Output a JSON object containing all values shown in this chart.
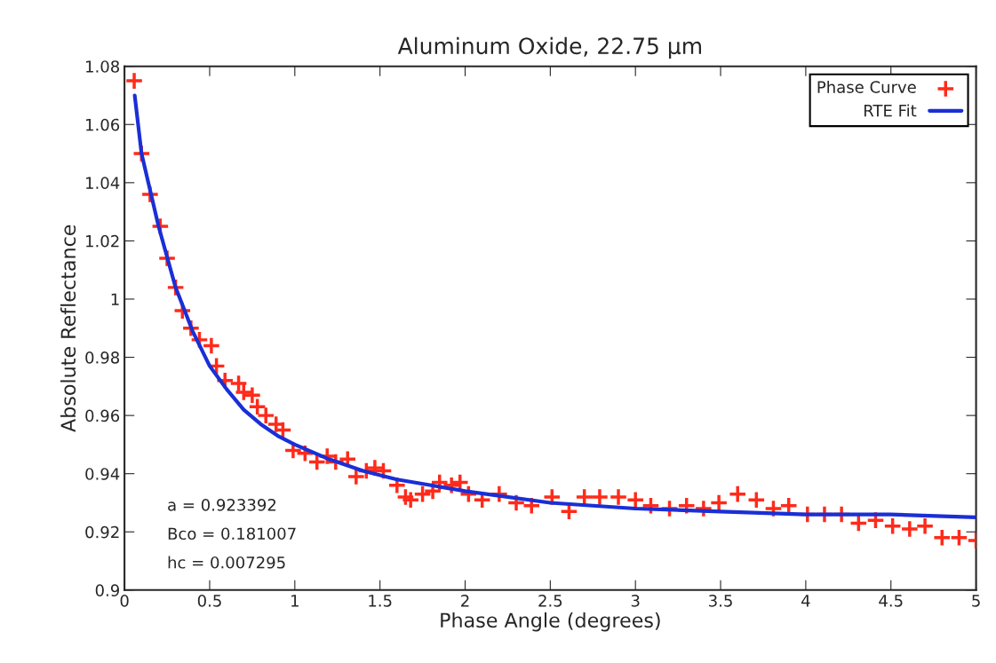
{
  "chart_data": {
    "type": "scatter",
    "title": "Aluminum Oxide, 22.75 μm",
    "xlabel": "Phase Angle (degrees)",
    "ylabel": "Absolute Reflectance",
    "xlim": [
      0,
      5
    ],
    "xticks": [
      0,
      0.5,
      1,
      1.5,
      2,
      2.5,
      3,
      3.5,
      4,
      4.5,
      5
    ],
    "ylim": [
      0.9,
      1.08
    ],
    "yticks": [
      0.9,
      0.92,
      0.94,
      0.96,
      0.98,
      1,
      1.02,
      1.04,
      1.06,
      1.08
    ],
    "grid": false,
    "legend": "top right",
    "series": [
      {
        "name": "Phase Curve",
        "marker": "cross",
        "color": "#ff2a1a",
        "x": [
          0.057,
          0.1,
          0.15,
          0.21,
          0.25,
          0.3,
          0.34,
          0.39,
          0.44,
          0.51,
          0.54,
          0.59,
          0.67,
          0.7,
          0.75,
          0.78,
          0.83,
          0.89,
          0.93,
          0.99,
          1.06,
          1.13,
          1.19,
          1.24,
          1.31,
          1.36,
          1.42,
          1.47,
          1.52,
          1.6,
          1.65,
          1.68,
          1.75,
          1.81,
          1.85,
          1.92,
          1.97,
          2.02,
          2.1,
          2.2,
          2.3,
          2.39,
          2.51,
          2.61,
          2.7,
          2.79,
          2.9,
          3.0,
          3.09,
          3.2,
          3.3,
          3.4,
          3.49,
          3.6,
          3.71,
          3.81,
          3.9,
          4.01,
          4.11,
          4.21,
          4.31,
          4.41,
          4.51,
          4.61,
          4.7,
          4.8,
          4.9,
          5.0
        ],
        "values": [
          1.075,
          1.05,
          1.036,
          1.025,
          1.014,
          1.004,
          0.996,
          0.99,
          0.986,
          0.984,
          0.977,
          0.972,
          0.971,
          0.968,
          0.967,
          0.963,
          0.96,
          0.957,
          0.955,
          0.948,
          0.947,
          0.944,
          0.946,
          0.944,
          0.945,
          0.939,
          0.941,
          0.942,
          0.941,
          0.936,
          0.932,
          0.931,
          0.933,
          0.934,
          0.937,
          0.936,
          0.937,
          0.933,
          0.931,
          0.933,
          0.93,
          0.929,
          0.932,
          0.927,
          0.932,
          0.932,
          0.932,
          0.931,
          0.929,
          0.928,
          0.929,
          0.928,
          0.93,
          0.933,
          0.931,
          0.928,
          0.929,
          0.926,
          0.926,
          0.926,
          0.923,
          0.924,
          0.922,
          0.921,
          0.922,
          0.918,
          0.918,
          0.917
        ]
      },
      {
        "name": "RTE Fit",
        "type": "line",
        "line_style": "solid",
        "color": "#1a2fd6",
        "x": [
          0.06,
          0.1,
          0.2,
          0.3,
          0.4,
          0.5,
          0.6,
          0.7,
          0.8,
          0.9,
          1.0,
          1.2,
          1.4,
          1.6,
          1.8,
          2.0,
          2.5,
          3.0,
          3.5,
          4.0,
          4.5,
          5.0
        ],
        "values": [
          1.07,
          1.05,
          1.025,
          1.004,
          0.989,
          0.977,
          0.969,
          0.962,
          0.957,
          0.953,
          0.95,
          0.945,
          0.941,
          0.938,
          0.936,
          0.934,
          0.93,
          0.928,
          0.927,
          0.926,
          0.926,
          0.925
        ]
      }
    ],
    "annotations": [
      "a = 0.923392",
      "Bco = 0.181007",
      "hc = 0.007295"
    ]
  }
}
